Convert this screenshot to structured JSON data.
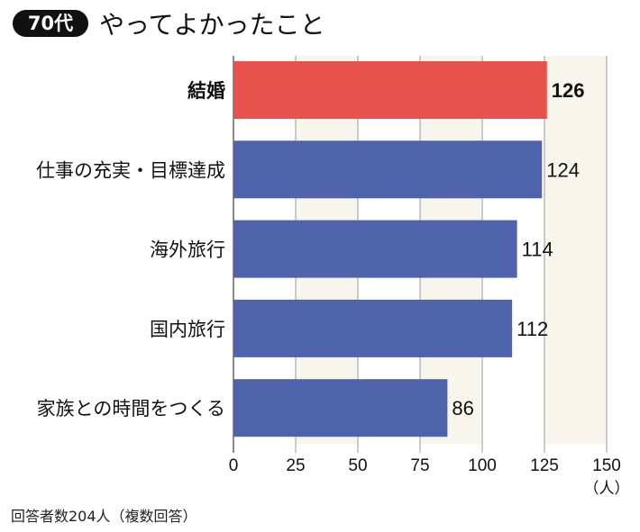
{
  "header": {
    "badge": "70代",
    "title": "やってよかったこと"
  },
  "footnote": "回答者数204人（複数回答）",
  "chart_data": {
    "type": "bar",
    "orientation": "horizontal",
    "categories": [
      "結婚",
      "仕事の充実・目標達成",
      "海外旅行",
      "国内旅行",
      "家族との時間をつくる"
    ],
    "values": [
      126,
      124,
      114,
      112,
      86
    ],
    "highlight_index": 0,
    "xlim": [
      0,
      150
    ],
    "xticks": [
      0,
      25,
      50,
      75,
      100,
      125,
      150
    ],
    "xunit": "（人）",
    "colors": {
      "highlight": "#e8524d",
      "bar": "#4f63ad",
      "band": "#f7f5ec",
      "grid": "#999999"
    }
  }
}
